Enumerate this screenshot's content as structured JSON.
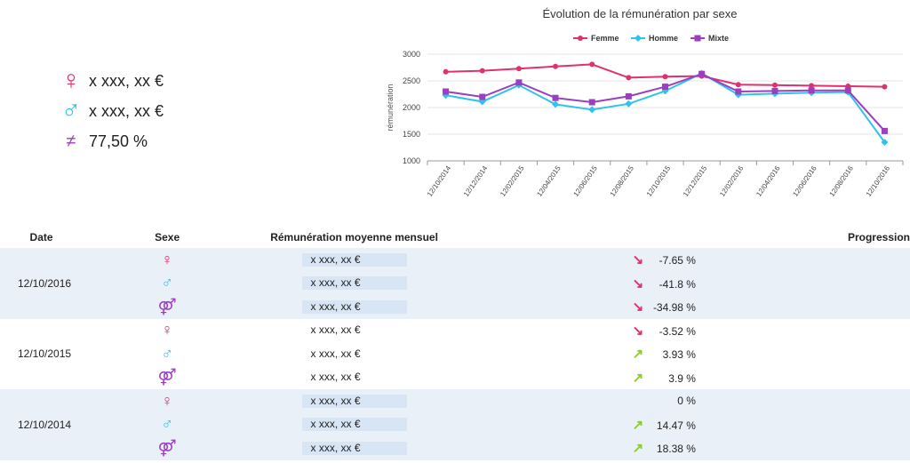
{
  "summary": {
    "female": {
      "icon": "female-icon",
      "value": "x xxx, xx €"
    },
    "male": {
      "icon": "male-icon",
      "value": "x xxx, xx €"
    },
    "ratio": {
      "icon": "not-equal-icon",
      "value": "77,50 %"
    }
  },
  "colors": {
    "femme": "#e0306e",
    "homme": "#2ec3ef",
    "mixte": "#9b3fc0",
    "up": "#8ccc28",
    "down": "#e0306e",
    "row_shade": "#eaf0f8"
  },
  "chart_data": {
    "type": "line",
    "title": "Évolution de la rémunération par sexe",
    "ylabel": "rémunération",
    "xlabel": "",
    "ylim": [
      1000,
      3000
    ],
    "yticks": [
      "1000",
      "1500",
      "2000",
      "2500",
      "3000"
    ],
    "legend_position": "top",
    "grid": true,
    "categories": [
      "12/10/2014",
      "12/12/2014",
      "12/02/2015",
      "12/04/2015",
      "12/06/2015",
      "12/08/2015",
      "12/10/2015",
      "12/12/2015",
      "12/02/2016",
      "12/04/2016",
      "12/06/2016",
      "12/08/2016",
      "12/10/2016"
    ],
    "series": [
      {
        "name": "Femme",
        "color": "#e0306e",
        "marker": "circle",
        "values": [
          2670,
          2690,
          2730,
          2770,
          2810,
          2560,
          2580,
          2590,
          2430,
          2420,
          2410,
          2400,
          2390
        ]
      },
      {
        "name": "Homme",
        "color": "#2ec3ef",
        "marker": "diamond",
        "values": [
          2230,
          2110,
          2420,
          2060,
          1960,
          2070,
          2310,
          2640,
          2240,
          2260,
          2280,
          2290,
          1350
        ]
      },
      {
        "name": "Mixte",
        "color": "#9b3fc0",
        "marker": "square",
        "values": [
          2300,
          2200,
          2470,
          2180,
          2100,
          2210,
          2390,
          2630,
          2300,
          2310,
          2320,
          2320,
          1560
        ]
      }
    ]
  },
  "table": {
    "headers": {
      "date": "Date",
      "sexe": "Sexe",
      "rem": "Rémunération moyenne mensuel",
      "prog": "Progression"
    },
    "groups": [
      {
        "date": "12/10/2016",
        "rows": [
          {
            "sex": "female",
            "rem": "x xxx, xx €",
            "arrow": "down",
            "pct": "-7.65 %"
          },
          {
            "sex": "male",
            "rem": "x xxx, xx €",
            "arrow": "down",
            "pct": "-41.8 %"
          },
          {
            "sex": "mixed",
            "rem": "x xxx, xx €",
            "arrow": "down",
            "pct": "-34.98 %"
          }
        ]
      },
      {
        "date": "12/10/2015",
        "rows": [
          {
            "sex": "female",
            "rem": "x xxx, xx €",
            "arrow": "down",
            "pct": "-3.52 %"
          },
          {
            "sex": "male",
            "rem": "x xxx, xx €",
            "arrow": "up",
            "pct": "3.93 %"
          },
          {
            "sex": "mixed",
            "rem": "x xxx, xx €",
            "arrow": "up",
            "pct": "3.9 %"
          }
        ]
      },
      {
        "date": "12/10/2014",
        "rows": [
          {
            "sex": "female",
            "rem": "x xxx, xx €",
            "arrow": "none",
            "pct": "0 %"
          },
          {
            "sex": "male",
            "rem": "x xxx, xx €",
            "arrow": "up",
            "pct": "14.47 %"
          },
          {
            "sex": "mixed",
            "rem": "x xxx, xx €",
            "arrow": "up",
            "pct": "18.38 %"
          }
        ]
      }
    ]
  }
}
